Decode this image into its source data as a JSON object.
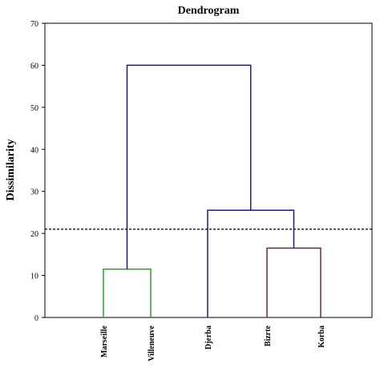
{
  "chart_data": {
    "type": "dendrogram",
    "title": "Dendrogram",
    "ylabel": "Dissimilarity",
    "xlabel": "",
    "ylim": [
      0,
      70
    ],
    "yticks": [
      0,
      10,
      20,
      30,
      40,
      50,
      60,
      70
    ],
    "leaves": [
      "Marseille",
      "Villeneuve",
      "Djerba",
      "Bizrte",
      "Korba"
    ],
    "merges": [
      {
        "id": "c1",
        "left": "Marseille",
        "right": "Villeneuve",
        "height": 11.5,
        "color": "#2e9e2e"
      },
      {
        "id": "c2",
        "left": "Bizrte",
        "right": "Korba",
        "height": 16.5,
        "color": "#6b2a2a"
      },
      {
        "id": "c3",
        "left": "Djerba",
        "right": "c2",
        "height": 25.5,
        "color": "#1c1f7a"
      },
      {
        "id": "c4",
        "left": "c1",
        "right": "c3",
        "height": 60,
        "color": "#1c1f7a"
      }
    ],
    "cutoff": 21,
    "cutoff_style": "dashed",
    "grid": false
  }
}
